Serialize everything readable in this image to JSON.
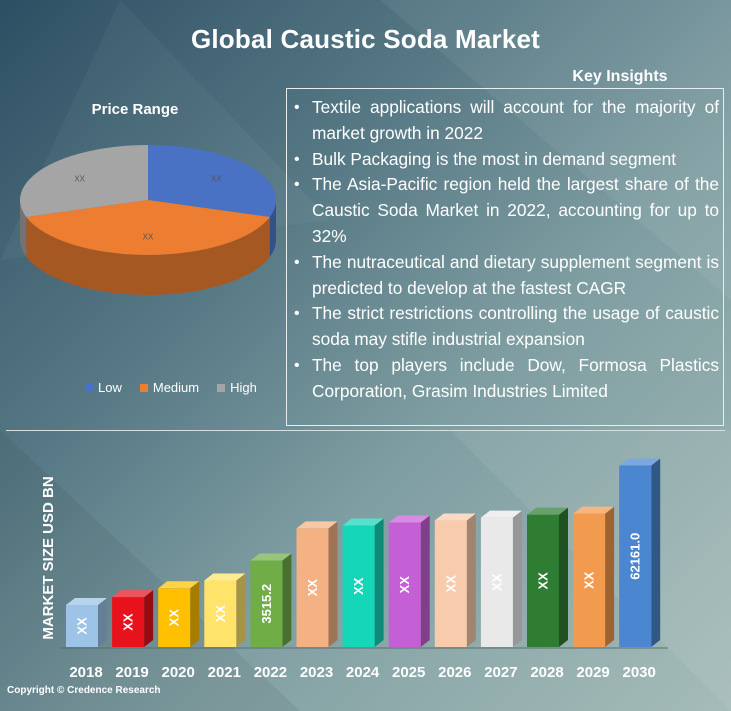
{
  "title": "Global Caustic Soda Market",
  "copyright": "Copyright © Credence Research",
  "key_insights": {
    "heading": "Key Insights",
    "items": [
      "Textile applications will account for the majority of market growth in 2022",
      "Bulk Packaging is the most in demand segment",
      "The Asia-Pacific region held the largest share of the Caustic Soda Market in 2022, accounting for up to 32%",
      "The nutraceutical and dietary supplement segment is predicted to develop at the fastest CAGR",
      "The strict restrictions controlling the usage of caustic soda may stifle industrial expansion",
      "The top players include Dow, Formosa Plastics Corporation, Grasim Industries Limited"
    ]
  },
  "chart_data": [
    {
      "type": "pie",
      "title": "Price Range",
      "slices": [
        {
          "name": "Low",
          "value": 30,
          "label": "XX",
          "color": "#4a72c4"
        },
        {
          "name": "Medium",
          "value": 40,
          "label": "XX",
          "color": "#ed7d31"
        },
        {
          "name": "High",
          "value": 30,
          "label": "XX",
          "color": "#a5a5a5"
        }
      ],
      "legend_position": "bottom",
      "legend": [
        {
          "name": "Low",
          "color": "#4a72c4"
        },
        {
          "name": "Medium",
          "color": "#ed7d31"
        },
        {
          "name": "High",
          "color": "#a5a5a5"
        }
      ]
    },
    {
      "type": "bar",
      "ylabel": "MARKET SIZE USD BN",
      "categories": [
        "2018",
        "2019",
        "2020",
        "2021",
        "2022",
        "2023",
        "2024",
        "2025",
        "2026",
        "2027",
        "2028",
        "2029",
        "2030"
      ],
      "values": [
        1250,
        1650,
        2100,
        2500,
        3515.2,
        5150,
        5300,
        5450,
        5550,
        5700,
        5850,
        5900,
        62161.0
      ],
      "labels": [
        "XX",
        "XX",
        "XX",
        "XX",
        "3515.2",
        "XX",
        "XX",
        "XX",
        "XX",
        "XX",
        "XX",
        "XX",
        "62161.0"
      ],
      "colors": [
        "#9dc3e6",
        "#e8121c",
        "#ffc000",
        "#ffe36b",
        "#70ad47",
        "#f4b183",
        "#16d6b8",
        "#c55fd6",
        "#f8cbad",
        "#e9e9e9",
        "#2f7d32",
        "#f29a4e",
        "#4b86d0"
      ],
      "axis_scale": "broken",
      "grid": false,
      "legend": false
    }
  ]
}
